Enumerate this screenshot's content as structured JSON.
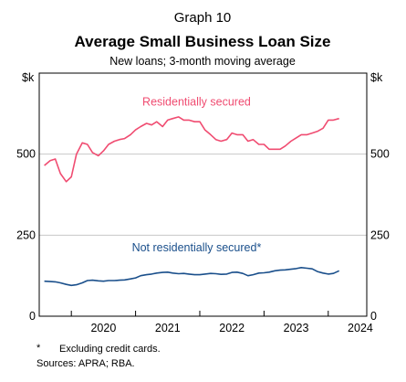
{
  "chart_data": {
    "type": "line",
    "graph_label": "Graph 10",
    "title": "Average Small Business Loan Size",
    "subtitle": "New loans; 3-month moving average",
    "y_unit": "$k",
    "ylim": [
      0,
      750
    ],
    "yticks": [
      "0",
      "250",
      "500"
    ],
    "ytick_values": [
      0,
      250,
      500
    ],
    "xlim": [
      2019.5,
      2024.6
    ],
    "xticks": [
      "2020",
      "2021",
      "2022",
      "2023",
      "2024"
    ],
    "xtick_positions": [
      2020,
      2021,
      2022,
      2023,
      2024
    ],
    "grid": true,
    "series": [
      {
        "name": "Residentially secured",
        "color": "#f04c71",
        "x": [
          2019.58,
          2019.67,
          2019.75,
          2019.83,
          2019.92,
          2020.0,
          2020.08,
          2020.17,
          2020.25,
          2020.33,
          2020.42,
          2020.5,
          2020.58,
          2020.67,
          2020.75,
          2020.83,
          2020.92,
          2021.0,
          2021.08,
          2021.17,
          2021.25,
          2021.33,
          2021.42,
          2021.5,
          2021.58,
          2021.67,
          2021.75,
          2021.83,
          2021.92,
          2022.0,
          2022.08,
          2022.17,
          2022.25,
          2022.33,
          2022.42,
          2022.5,
          2022.58,
          2022.67,
          2022.75,
          2022.83,
          2022.92,
          2023.0,
          2023.08,
          2023.17,
          2023.25,
          2023.33,
          2023.42,
          2023.5,
          2023.58,
          2023.67,
          2023.75,
          2023.83,
          2023.92,
          2024.0,
          2024.08,
          2024.17
        ],
        "values": [
          465,
          480,
          485,
          440,
          415,
          430,
          500,
          535,
          530,
          505,
          495,
          510,
          530,
          540,
          545,
          548,
          560,
          575,
          585,
          595,
          590,
          600,
          585,
          605,
          610,
          615,
          605,
          605,
          600,
          600,
          575,
          560,
          545,
          540,
          545,
          565,
          560,
          560,
          540,
          545,
          530,
          530,
          515,
          515,
          515,
          525,
          540,
          550,
          560,
          560,
          565,
          570,
          580,
          605,
          605,
          610
        ]
      },
      {
        "name": "Not residentially secured*",
        "color": "#1a4f8b",
        "x": [
          2019.58,
          2019.67,
          2019.75,
          2019.83,
          2019.92,
          2020.0,
          2020.08,
          2020.17,
          2020.25,
          2020.33,
          2020.42,
          2020.5,
          2020.58,
          2020.67,
          2020.75,
          2020.83,
          2020.92,
          2021.0,
          2021.08,
          2021.17,
          2021.25,
          2021.33,
          2021.42,
          2021.5,
          2021.58,
          2021.67,
          2021.75,
          2021.83,
          2021.92,
          2022.0,
          2022.08,
          2022.17,
          2022.25,
          2022.33,
          2022.42,
          2022.5,
          2022.58,
          2022.67,
          2022.75,
          2022.83,
          2022.92,
          2023.0,
          2023.08,
          2023.17,
          2023.25,
          2023.33,
          2023.42,
          2023.5,
          2023.58,
          2023.67,
          2023.75,
          2023.83,
          2023.92,
          2024.0,
          2024.08,
          2024.17
        ],
        "values": [
          108,
          107,
          106,
          103,
          98,
          95,
          97,
          103,
          110,
          111,
          109,
          108,
          110,
          110,
          111,
          112,
          115,
          118,
          125,
          128,
          130,
          133,
          135,
          136,
          133,
          131,
          132,
          130,
          128,
          128,
          130,
          132,
          131,
          129,
          130,
          135,
          136,
          132,
          125,
          128,
          133,
          134,
          136,
          140,
          142,
          143,
          145,
          147,
          150,
          148,
          146,
          138,
          133,
          130,
          132,
          140
        ]
      }
    ],
    "annotations": [
      {
        "text": "Residentially secured",
        "series": 0,
        "x": 2021.95,
        "y": 650
      },
      {
        "text": "Not residentially secured*",
        "series": 1,
        "x": 2021.95,
        "y": 200
      }
    ]
  },
  "footnote": {
    "marker": "*",
    "text": "Excluding credit cards.",
    "sources": "Sources: APRA; RBA."
  }
}
